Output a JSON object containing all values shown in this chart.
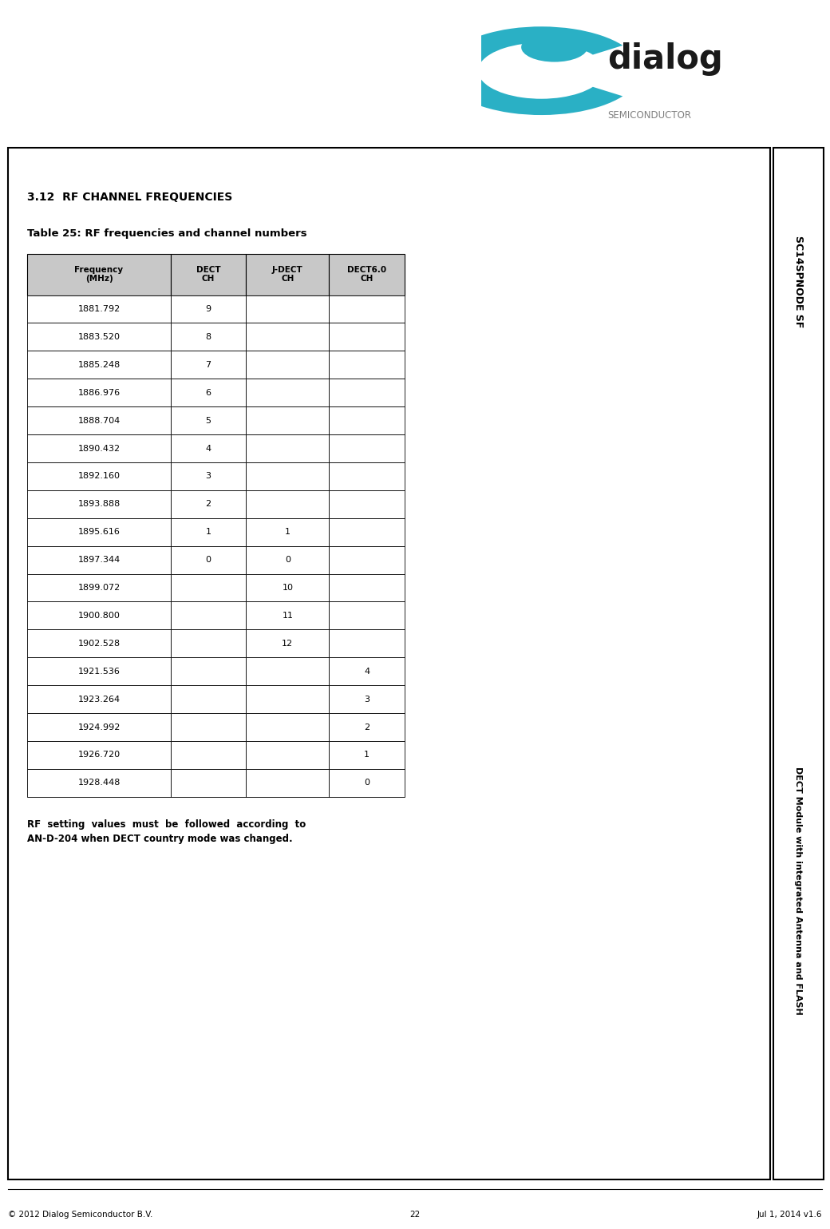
{
  "title_section": "3.12  RF CHANNEL FREQUENCIES",
  "table_caption": "Table 25: RF frequencies and channel numbers",
  "col_headers": [
    "Frequency\n(MHz)",
    "DECT\nCH",
    "J-DECT\nCH",
    "DECT6.0\nCH"
  ],
  "rows": [
    [
      "1881.792",
      "9",
      "",
      ""
    ],
    [
      "1883.520",
      "8",
      "",
      ""
    ],
    [
      "1885.248",
      "7",
      "",
      ""
    ],
    [
      "1886.976",
      "6",
      "",
      ""
    ],
    [
      "1888.704",
      "5",
      "",
      ""
    ],
    [
      "1890.432",
      "4",
      "",
      ""
    ],
    [
      "1892.160",
      "3",
      "",
      ""
    ],
    [
      "1893.888",
      "2",
      "",
      ""
    ],
    [
      "1895.616",
      "1",
      "1",
      ""
    ],
    [
      "1897.344",
      "0",
      "0",
      ""
    ],
    [
      "1899.072",
      "",
      "10",
      ""
    ],
    [
      "1900.800",
      "",
      "11",
      ""
    ],
    [
      "1902.528",
      "",
      "12",
      ""
    ],
    [
      "1921.536",
      "",
      "",
      "4"
    ],
    [
      "1923.264",
      "",
      "",
      "3"
    ],
    [
      "1924.992",
      "",
      "",
      "2"
    ],
    [
      "1926.720",
      "",
      "",
      "1"
    ],
    [
      "1928.448",
      "",
      "",
      "0"
    ]
  ],
  "note_text": "RF  setting  values  must  be  followed  according  to\nAN-D-204 when DECT country mode was changed.",
  "sidebar_top": "SC14SPNODE SF",
  "sidebar_bottom": "DECT Module with integrated Antenna and FLASH",
  "footer_left": "© 2012 Dialog Semiconductor B.V.",
  "footer_center": "22",
  "footer_right": "Jul 1, 2014 v1.6",
  "logo_text_dialog": "dialog",
  "logo_text_semi": "SEMICONDUCTOR",
  "bg_color": "#ffffff",
  "border_color": "#000000",
  "header_bg": "#c8c8c8",
  "teal_color": "#2ab0c5",
  "fig_width": 10.4,
  "fig_height": 15.39,
  "dpi": 100
}
